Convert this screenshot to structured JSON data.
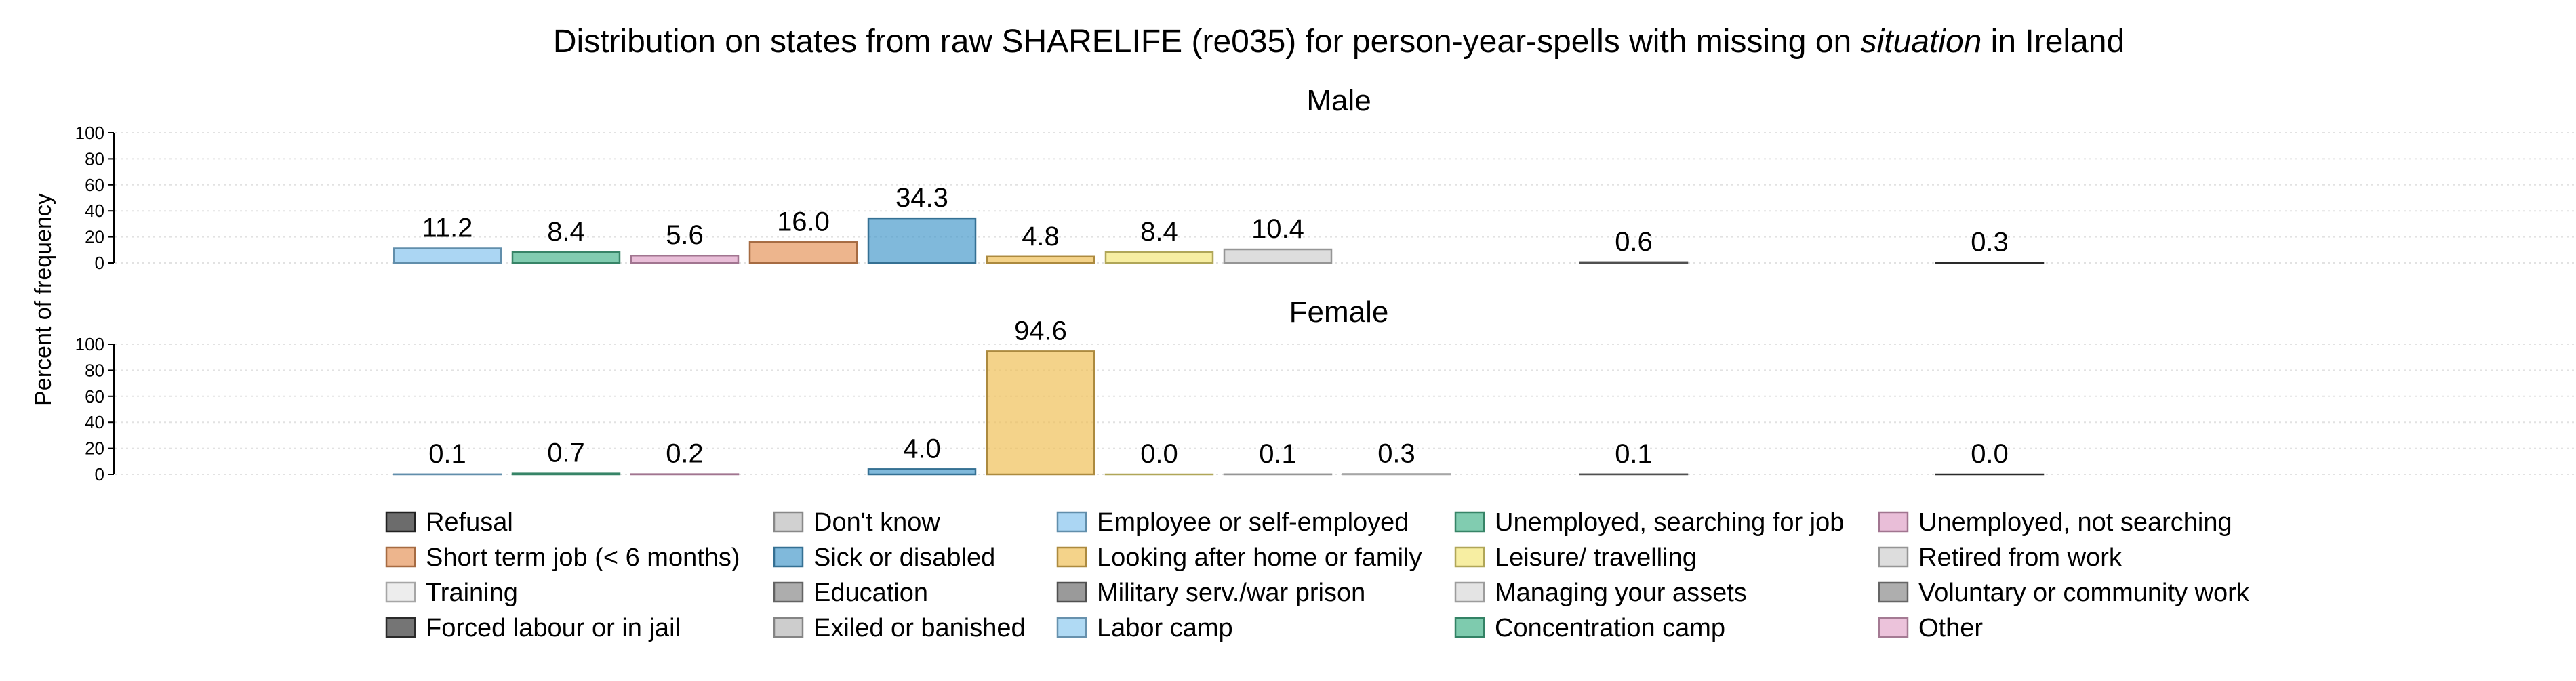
{
  "chart_data": {
    "type": "bar",
    "title_parts": [
      {
        "text": "Distribution on states from raw SHARELIFE (re035) for person-year-spells with missing on ",
        "italic": false
      },
      {
        "text": "situation",
        "italic": true
      },
      {
        "text": " in Ireland",
        "italic": false
      }
    ],
    "ylabel": "Percent of frequency",
    "ylim": [
      0,
      100
    ],
    "yticks": [
      0,
      20,
      40,
      60,
      80,
      100
    ],
    "grid": true,
    "categories": [
      "Refusal",
      "Don't know",
      "Employee or self-employed",
      "Unemployed, searching for job",
      "Unemployed, not searching",
      "Short term job (< 6 months)",
      "Sick or disabled",
      "Looking after home or family",
      "Leisure/ travelling",
      "Retired from work",
      "Training",
      "Education",
      "Military serv./war prison",
      "Managing your assets",
      "Voluntary or community work",
      "Forced labour or in jail",
      "Exiled or banished",
      "Labor camp",
      "Concentration camp",
      "Other"
    ],
    "colors": [
      "#2e2e2e",
      "#bdbdbd",
      "#87c5ee",
      "#4cb78f",
      "#e0a3c8",
      "#e6955c",
      "#4a9bcc",
      "#efc058",
      "#f4e77a",
      "#cfcfcf",
      "#e6e6e6",
      "#8a8a8a",
      "#6f6f6f",
      "#d9d9d9",
      "#8c8c8c",
      "#3a3a3a",
      "#b8b8b8",
      "#8fcaf0",
      "#47b58c",
      "#e4a9cc"
    ],
    "bar_order": [
      "Employee or self-employed",
      "Unemployed, searching for job",
      "Unemployed, not searching",
      "Short term job (< 6 months)",
      "Sick or disabled",
      "Looking after home or family",
      "Leisure/ travelling",
      "Retired from work",
      "Training",
      "Education",
      "Military serv./war prison",
      "Managing your assets",
      "Voluntary or community work",
      "Forced labour or in jail",
      "Exiled or banished",
      "Labor camp",
      "Concentration camp",
      "Other"
    ],
    "panels": [
      {
        "name": "Male",
        "bars": [
          {
            "category": "Employee or self-employed",
            "value": 11.2,
            "label": "11.2"
          },
          {
            "category": "Unemployed, searching for job",
            "value": 8.4,
            "label": "8.4"
          },
          {
            "category": "Unemployed, not searching",
            "value": 5.6,
            "label": "5.6"
          },
          {
            "category": "Short term job (< 6 months)",
            "value": 16.0,
            "label": "16.0"
          },
          {
            "category": "Sick or disabled",
            "value": 34.3,
            "label": "34.3"
          },
          {
            "category": "Looking after home or family",
            "value": 4.8,
            "label": "4.8"
          },
          {
            "category": "Leisure/ travelling",
            "value": 8.4,
            "label": "8.4"
          },
          {
            "category": "Retired from work",
            "value": 10.4,
            "label": "10.4"
          },
          {
            "category": "Military serv./war prison",
            "value": 0.6,
            "label": "0.6"
          },
          {
            "category": "Forced labour or in jail",
            "value": 0.3,
            "label": "0.3"
          }
        ]
      },
      {
        "name": "Female",
        "bars": [
          {
            "category": "Employee or self-employed",
            "value": 0.1,
            "label": "0.1"
          },
          {
            "category": "Unemployed, searching for job",
            "value": 0.7,
            "label": "0.7"
          },
          {
            "category": "Unemployed, not searching",
            "value": 0.2,
            "label": "0.2"
          },
          {
            "category": "Sick or disabled",
            "value": 4.0,
            "label": "4.0"
          },
          {
            "category": "Looking after home or family",
            "value": 94.6,
            "label": "94.6"
          },
          {
            "category": "Leisure/ travelling",
            "value": 0.0,
            "label": "0.0"
          },
          {
            "category": "Retired from work",
            "value": 0.1,
            "label": "0.1"
          },
          {
            "category": "Training",
            "value": 0.3,
            "label": "0.3"
          },
          {
            "category": "Military serv./war prison",
            "value": 0.1,
            "label": "0.1"
          },
          {
            "category": "Forced labour or in jail",
            "value": 0.0,
            "label": "0.0"
          }
        ]
      }
    ],
    "legend": {
      "placement": "bottom",
      "columns": 5,
      "entries": [
        "Refusal",
        "Don't know",
        "Employee or self-employed",
        "Unemployed, searching for job",
        "Unemployed, not searching",
        "Short term job (< 6 months)",
        "Sick or disabled",
        "Looking after home or family",
        "Leisure/ travelling",
        "Retired from work",
        "Training",
        "Education",
        "Military serv./war prison",
        "Managing your assets",
        "Voluntary or community work",
        "Forced labour or in jail",
        "Exiled or banished",
        "Labor camp",
        "Concentration camp",
        "Other"
      ]
    }
  }
}
